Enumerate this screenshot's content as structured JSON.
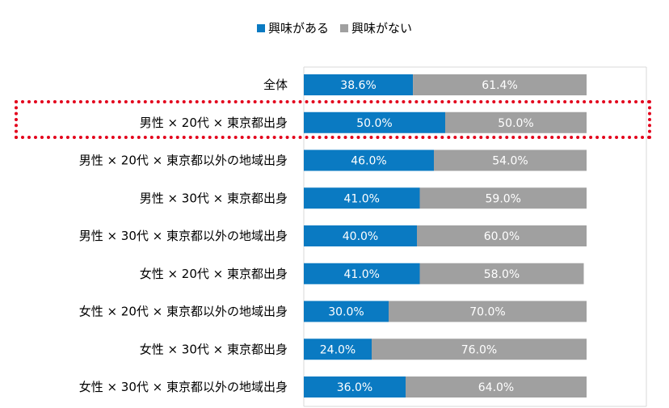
{
  "chart_data": {
    "type": "bar",
    "orientation": "horizontal",
    "stacked": true,
    "categories": [
      "全体",
      "男性 × 20代 × 東京都出身",
      "男性 × 20代 × 東京都以外の地域出身",
      "男性 × 30代 × 東京都出身",
      "男性 × 30代 × 東京都以外の地域出身",
      "女性 × 20代 × 東京都出身",
      "女性 × 20代 × 東京都以外の地域出身",
      "女性 × 30代 × 東京都出身",
      "女性 × 30代 × 東京都以外の地域出身"
    ],
    "series": [
      {
        "name": "興味がある",
        "color": "#0a7ac2",
        "values": [
          38.6,
          50.0,
          46.0,
          41.0,
          40.0,
          41.0,
          30.0,
          24.0,
          36.0
        ],
        "labels": [
          "38.6%",
          "50.0%",
          "46.0%",
          "41.0%",
          "40.0%",
          "41.0%",
          "30.0%",
          "24.0%",
          "36.0%"
        ]
      },
      {
        "name": "興味がない",
        "color": "#a0a0a0",
        "values": [
          61.4,
          50.0,
          54.0,
          59.0,
          60.0,
          58.0,
          70.0,
          76.0,
          64.0
        ],
        "labels": [
          "61.4%",
          "50.0%",
          "54.0%",
          "59.0%",
          "60.0%",
          "58.0%",
          "70.0%",
          "76.0%",
          "64.0%"
        ]
      }
    ],
    "xlim": [
      0,
      100
    ],
    "legend_position": "top-center",
    "grid": true,
    "highlighted_category": "男性 × 20代 × 東京都出身",
    "highlight_color": "#e3001b"
  }
}
